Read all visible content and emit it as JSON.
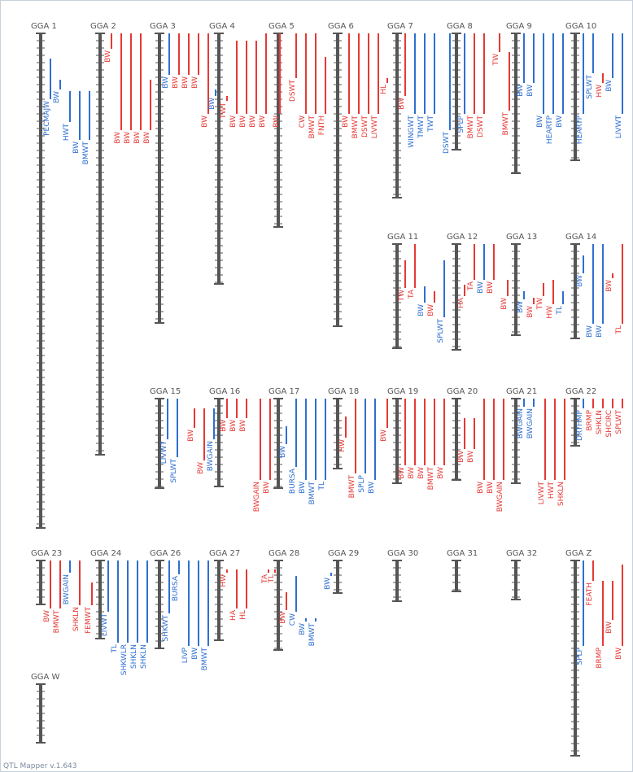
{
  "app": {
    "footer": "QTL Mapper v.1.643"
  },
  "colors": {
    "red": "#e53935",
    "blue": "#2f6fd0",
    "chrom": "#555555",
    "label": "#555555"
  },
  "groups": [
    {
      "name": "GGA 1",
      "qtl": [
        {
          "label": "PECMAJW",
          "color": "blue"
        },
        {
          "label": "BW",
          "color": "blue"
        },
        {
          "label": "HWT",
          "color": "blue"
        },
        {
          "label": "BW",
          "color": "blue"
        },
        {
          "label": "BMWT",
          "color": "blue"
        }
      ]
    },
    {
      "name": "GGA 2",
      "qtl": [
        {
          "label": "BW",
          "color": "red"
        },
        {
          "label": "BW",
          "color": "red"
        },
        {
          "label": "BW",
          "color": "red"
        },
        {
          "label": "BW",
          "color": "red"
        },
        {
          "label": "BW",
          "color": "red"
        }
      ]
    },
    {
      "name": "GGA 3",
      "qtl": [
        {
          "label": "BW",
          "color": "blue"
        },
        {
          "label": "BW",
          "color": "red"
        },
        {
          "label": "BW",
          "color": "red"
        },
        {
          "label": "BW",
          "color": "red"
        },
        {
          "label": "BW",
          "color": "red"
        }
      ]
    },
    {
      "name": "GGA 4",
      "qtl": [
        {
          "label": "BW",
          "color": "blue"
        },
        {
          "label": "TWT",
          "color": "red"
        },
        {
          "label": "BW",
          "color": "red"
        },
        {
          "label": "BW",
          "color": "red"
        },
        {
          "label": "BW",
          "color": "red"
        },
        {
          "label": "BW",
          "color": "red"
        }
      ]
    },
    {
      "name": "GGA 5",
      "qtl": [
        {
          "label": "BW",
          "color": "red"
        },
        {
          "label": "DSWT",
          "color": "red"
        },
        {
          "label": "CW",
          "color": "red"
        },
        {
          "label": "BMWT",
          "color": "red"
        },
        {
          "label": "FNTH",
          "color": "red"
        }
      ]
    },
    {
      "name": "GGA 6",
      "qtl": [
        {
          "label": "BW",
          "color": "red"
        },
        {
          "label": "BMWT",
          "color": "red"
        },
        {
          "label": "DSWT",
          "color": "red"
        },
        {
          "label": "LIVWT",
          "color": "red"
        }
      ]
    },
    {
      "name": "GGA 7",
      "qtl": [
        {
          "label": "HL",
          "color": "red"
        },
        {
          "label": "BW",
          "color": "red"
        },
        {
          "label": "WINGWT",
          "color": "blue"
        },
        {
          "label": "TMWT",
          "color": "blue"
        },
        {
          "label": "TWT",
          "color": "blue"
        }
      ]
    },
    {
      "name": "GGA 8",
      "qtl": [
        {
          "label": "DSWT",
          "color": "blue"
        },
        {
          "label": "SPLP",
          "color": "blue"
        },
        {
          "label": "BMWT",
          "color": "red"
        },
        {
          "label": "DSWT",
          "color": "red"
        }
      ]
    },
    {
      "name": "GGA 9",
      "qtl": [
        {
          "label": "TW",
          "color": "red"
        },
        {
          "label": "BMWT",
          "color": "red"
        },
        {
          "label": "BW",
          "color": "blue"
        },
        {
          "label": "BW",
          "color": "blue"
        },
        {
          "label": "BW",
          "color": "blue"
        },
        {
          "label": "HEARTP",
          "color": "blue"
        },
        {
          "label": "BW",
          "color": "blue"
        }
      ]
    },
    {
      "name": "GGA 10",
      "qtl": [
        {
          "label": "HEARTP",
          "color": "blue"
        },
        {
          "label": "SPLWT",
          "color": "blue"
        },
        {
          "label": "HW",
          "color": "red"
        },
        {
          "label": "BW",
          "color": "blue"
        },
        {
          "label": "LIVWT",
          "color": "blue"
        }
      ]
    },
    {
      "name": "GGA 11",
      "qtl": [
        {
          "label": "TW",
          "color": "red"
        },
        {
          "label": "TA",
          "color": "red"
        },
        {
          "label": "BW",
          "color": "blue"
        },
        {
          "label": "BW",
          "color": "red"
        },
        {
          "label": "SPLWT",
          "color": "blue"
        }
      ]
    },
    {
      "name": "GGA 12",
      "qtl": [
        {
          "label": "HA",
          "color": "red"
        },
        {
          "label": "TA",
          "color": "red"
        },
        {
          "label": "BW",
          "color": "blue"
        },
        {
          "label": "BW",
          "color": "red"
        }
      ]
    },
    {
      "name": "GGA 13",
      "qtl": [
        {
          "label": "BW",
          "color": "red"
        },
        {
          "label": "BW",
          "color": "blue"
        },
        {
          "label": "BW",
          "color": "red"
        },
        {
          "label": "TW",
          "color": "red"
        },
        {
          "label": "HW",
          "color": "red"
        },
        {
          "label": "TL",
          "color": "blue"
        }
      ]
    },
    {
      "name": "GGA 14",
      "qtl": [
        {
          "label": "BW",
          "color": "blue"
        },
        {
          "label": "BW",
          "color": "blue"
        },
        {
          "label": "BW",
          "color": "blue"
        },
        {
          "label": "BW",
          "color": "red"
        },
        {
          "label": "TL",
          "color": "red"
        }
      ]
    },
    {
      "name": "GGA 15",
      "qtl": [
        {
          "label": "LIVWT",
          "color": "blue"
        },
        {
          "label": "SPLWT",
          "color": "blue"
        }
      ]
    },
    {
      "name": "GGA 16",
      "qtl": [
        {
          "label": "BW",
          "color": "red"
        },
        {
          "label": "BW",
          "color": "red"
        },
        {
          "label": "BWGAIN",
          "color": "blue"
        },
        {
          "label": "BW",
          "color": "red"
        },
        {
          "label": "BW",
          "color": "red"
        },
        {
          "label": "BW",
          "color": "red"
        }
      ]
    },
    {
      "name": "GGA 17",
      "qtl": [
        {
          "label": "BWGAIN",
          "color": "red"
        },
        {
          "label": "BW",
          "color": "red"
        },
        {
          "label": "BW",
          "color": "blue"
        },
        {
          "label": "BURSA",
          "color": "blue"
        },
        {
          "label": "BW",
          "color": "blue"
        },
        {
          "label": "BMWT",
          "color": "blue"
        },
        {
          "label": "TL",
          "color": "blue"
        }
      ]
    },
    {
      "name": "GGA 18",
      "qtl": [
        {
          "label": "HW",
          "color": "red"
        },
        {
          "label": "BMWT",
          "color": "red"
        },
        {
          "label": "SPLP",
          "color": "blue"
        },
        {
          "label": "BW",
          "color": "blue"
        }
      ]
    },
    {
      "name": "GGA 19",
      "qtl": [
        {
          "label": "BW",
          "color": "red"
        },
        {
          "label": "BW",
          "color": "red"
        },
        {
          "label": "BW",
          "color": "red"
        },
        {
          "label": "BW",
          "color": "red"
        },
        {
          "label": "BMWT",
          "color": "red"
        },
        {
          "label": "BW",
          "color": "red"
        }
      ]
    },
    {
      "name": "GGA 20",
      "qtl": [
        {
          "label": "BW",
          "color": "red"
        },
        {
          "label": "BW",
          "color": "red"
        },
        {
          "label": "BW",
          "color": "red"
        },
        {
          "label": "BW",
          "color": "red"
        },
        {
          "label": "BWGAIN",
          "color": "red"
        }
      ]
    },
    {
      "name": "GGA 21",
      "qtl": [
        {
          "label": "BWGAIN",
          "color": "blue"
        },
        {
          "label": "BWGAIN",
          "color": "blue"
        },
        {
          "label": "LIVWT",
          "color": "red"
        },
        {
          "label": "HWT",
          "color": "red"
        },
        {
          "label": "SHKLN",
          "color": "red"
        }
      ]
    },
    {
      "name": "GGA 22",
      "qtl": [
        {
          "label": "DRTHMP",
          "color": "blue"
        },
        {
          "label": "BRMP",
          "color": "red"
        },
        {
          "label": "SHKLN",
          "color": "red"
        },
        {
          "label": "SHCIRC",
          "color": "red"
        },
        {
          "label": "SPLWT",
          "color": "red"
        }
      ]
    },
    {
      "name": "GGA 23",
      "qtl": [
        {
          "label": "BW",
          "color": "red"
        },
        {
          "label": "BMWT",
          "color": "red"
        },
        {
          "label": "BWGAIN",
          "color": "blue"
        },
        {
          "label": "SHKLN",
          "color": "red"
        }
      ]
    },
    {
      "name": "GGA 24",
      "qtl": [
        {
          "label": "FEMWT",
          "color": "red"
        },
        {
          "label": "LIVWT",
          "color": "blue"
        },
        {
          "label": "TL",
          "color": "blue"
        },
        {
          "label": "SHKWLR",
          "color": "blue"
        },
        {
          "label": "SHKLN",
          "color": "blue"
        },
        {
          "label": "SHKLN",
          "color": "blue"
        }
      ]
    },
    {
      "name": "GGA 26",
      "qtl": [
        {
          "label": "SHKWT",
          "color": "blue"
        },
        {
          "label": "BURSA",
          "color": "blue"
        },
        {
          "label": "LIVP",
          "color": "blue"
        },
        {
          "label": "BW",
          "color": "blue"
        },
        {
          "label": "BMWT",
          "color": "blue"
        }
      ]
    },
    {
      "name": "GGA 27",
      "qtl": [
        {
          "label": "HW",
          "color": "red"
        },
        {
          "label": "HA",
          "color": "red"
        },
        {
          "label": "HL",
          "color": "red"
        }
      ]
    },
    {
      "name": "GGA 28",
      "qtl": [
        {
          "label": "TA",
          "color": "red"
        },
        {
          "label": "TL",
          "color": "red"
        },
        {
          "label": "BW",
          "color": "red"
        },
        {
          "label": "CW",
          "color": "blue"
        },
        {
          "label": "BW",
          "color": "blue"
        },
        {
          "label": "BMWT",
          "color": "blue"
        }
      ]
    },
    {
      "name": "GGA 29",
      "qtl": [
        {
          "label": "BW",
          "color": "blue"
        }
      ]
    },
    {
      "name": "GGA 30",
      "qtl": []
    },
    {
      "name": "GGA 31",
      "qtl": []
    },
    {
      "name": "GGA 32",
      "qtl": []
    },
    {
      "name": "GGA Z",
      "qtl": [
        {
          "label": "SPLP",
          "color": "blue"
        },
        {
          "label": "FEATH",
          "color": "red"
        },
        {
          "label": "BRMP",
          "color": "red"
        },
        {
          "label": "BW",
          "color": "red"
        },
        {
          "label": "BW",
          "color": "red"
        }
      ]
    },
    {
      "name": "GGA W",
      "qtl": []
    }
  ]
}
